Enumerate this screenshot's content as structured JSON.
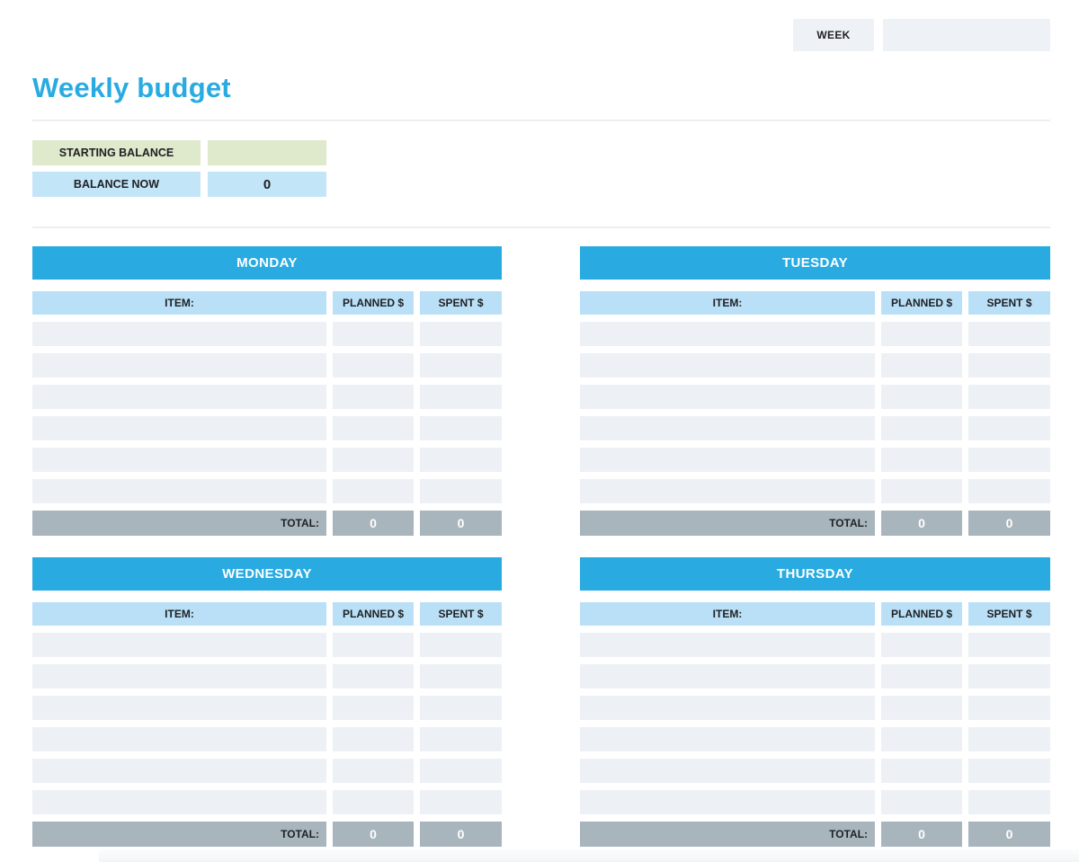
{
  "page": {
    "title": "Weekly budget"
  },
  "header": {
    "week_label": "WEEK",
    "week_value": ""
  },
  "balance": {
    "starting_label": "STARTING BALANCE",
    "starting_value": "",
    "now_label": "BALANCE NOW",
    "now_value": "0"
  },
  "table_headers": {
    "item": "ITEM:",
    "planned": "PLANNED $",
    "spent": "SPENT $",
    "total": "TOTAL:"
  },
  "days": [
    {
      "name": "MONDAY",
      "rows": [
        {
          "item": "",
          "planned": "",
          "spent": ""
        },
        {
          "item": "",
          "planned": "",
          "spent": ""
        },
        {
          "item": "",
          "planned": "",
          "spent": ""
        },
        {
          "item": "",
          "planned": "",
          "spent": ""
        },
        {
          "item": "",
          "planned": "",
          "spent": ""
        },
        {
          "item": "",
          "planned": "",
          "spent": ""
        }
      ],
      "total_planned": "0",
      "total_spent": "0"
    },
    {
      "name": "TUESDAY",
      "rows": [
        {
          "item": "",
          "planned": "",
          "spent": ""
        },
        {
          "item": "",
          "planned": "",
          "spent": ""
        },
        {
          "item": "",
          "planned": "",
          "spent": ""
        },
        {
          "item": "",
          "planned": "",
          "spent": ""
        },
        {
          "item": "",
          "planned": "",
          "spent": ""
        },
        {
          "item": "",
          "planned": "",
          "spent": ""
        }
      ],
      "total_planned": "0",
      "total_spent": "0"
    },
    {
      "name": "WEDNESDAY",
      "rows": [
        {
          "item": "",
          "planned": "",
          "spent": ""
        },
        {
          "item": "",
          "planned": "",
          "spent": ""
        },
        {
          "item": "",
          "planned": "",
          "spent": ""
        },
        {
          "item": "",
          "planned": "",
          "spent": ""
        },
        {
          "item": "",
          "planned": "",
          "spent": ""
        },
        {
          "item": "",
          "planned": "",
          "spent": ""
        }
      ],
      "total_planned": "0",
      "total_spent": "0"
    },
    {
      "name": "THURSDAY",
      "rows": [
        {
          "item": "",
          "planned": "",
          "spent": ""
        },
        {
          "item": "",
          "planned": "",
          "spent": ""
        },
        {
          "item": "",
          "planned": "",
          "spent": ""
        },
        {
          "item": "",
          "planned": "",
          "spent": ""
        },
        {
          "item": "",
          "planned": "",
          "spent": ""
        },
        {
          "item": "",
          "planned": "",
          "spent": ""
        }
      ],
      "total_planned": "0",
      "total_spent": "0"
    }
  ],
  "colors": {
    "accent_blue": "#29abe2",
    "column_header_blue": "#b9e0f7",
    "balance_blue": "#c3e5f8",
    "starting_green": "#dfe9cb",
    "row_bg": "#edf1f5",
    "total_gray": "#a9b5bc",
    "week_box_gray": "#eef2f6"
  }
}
